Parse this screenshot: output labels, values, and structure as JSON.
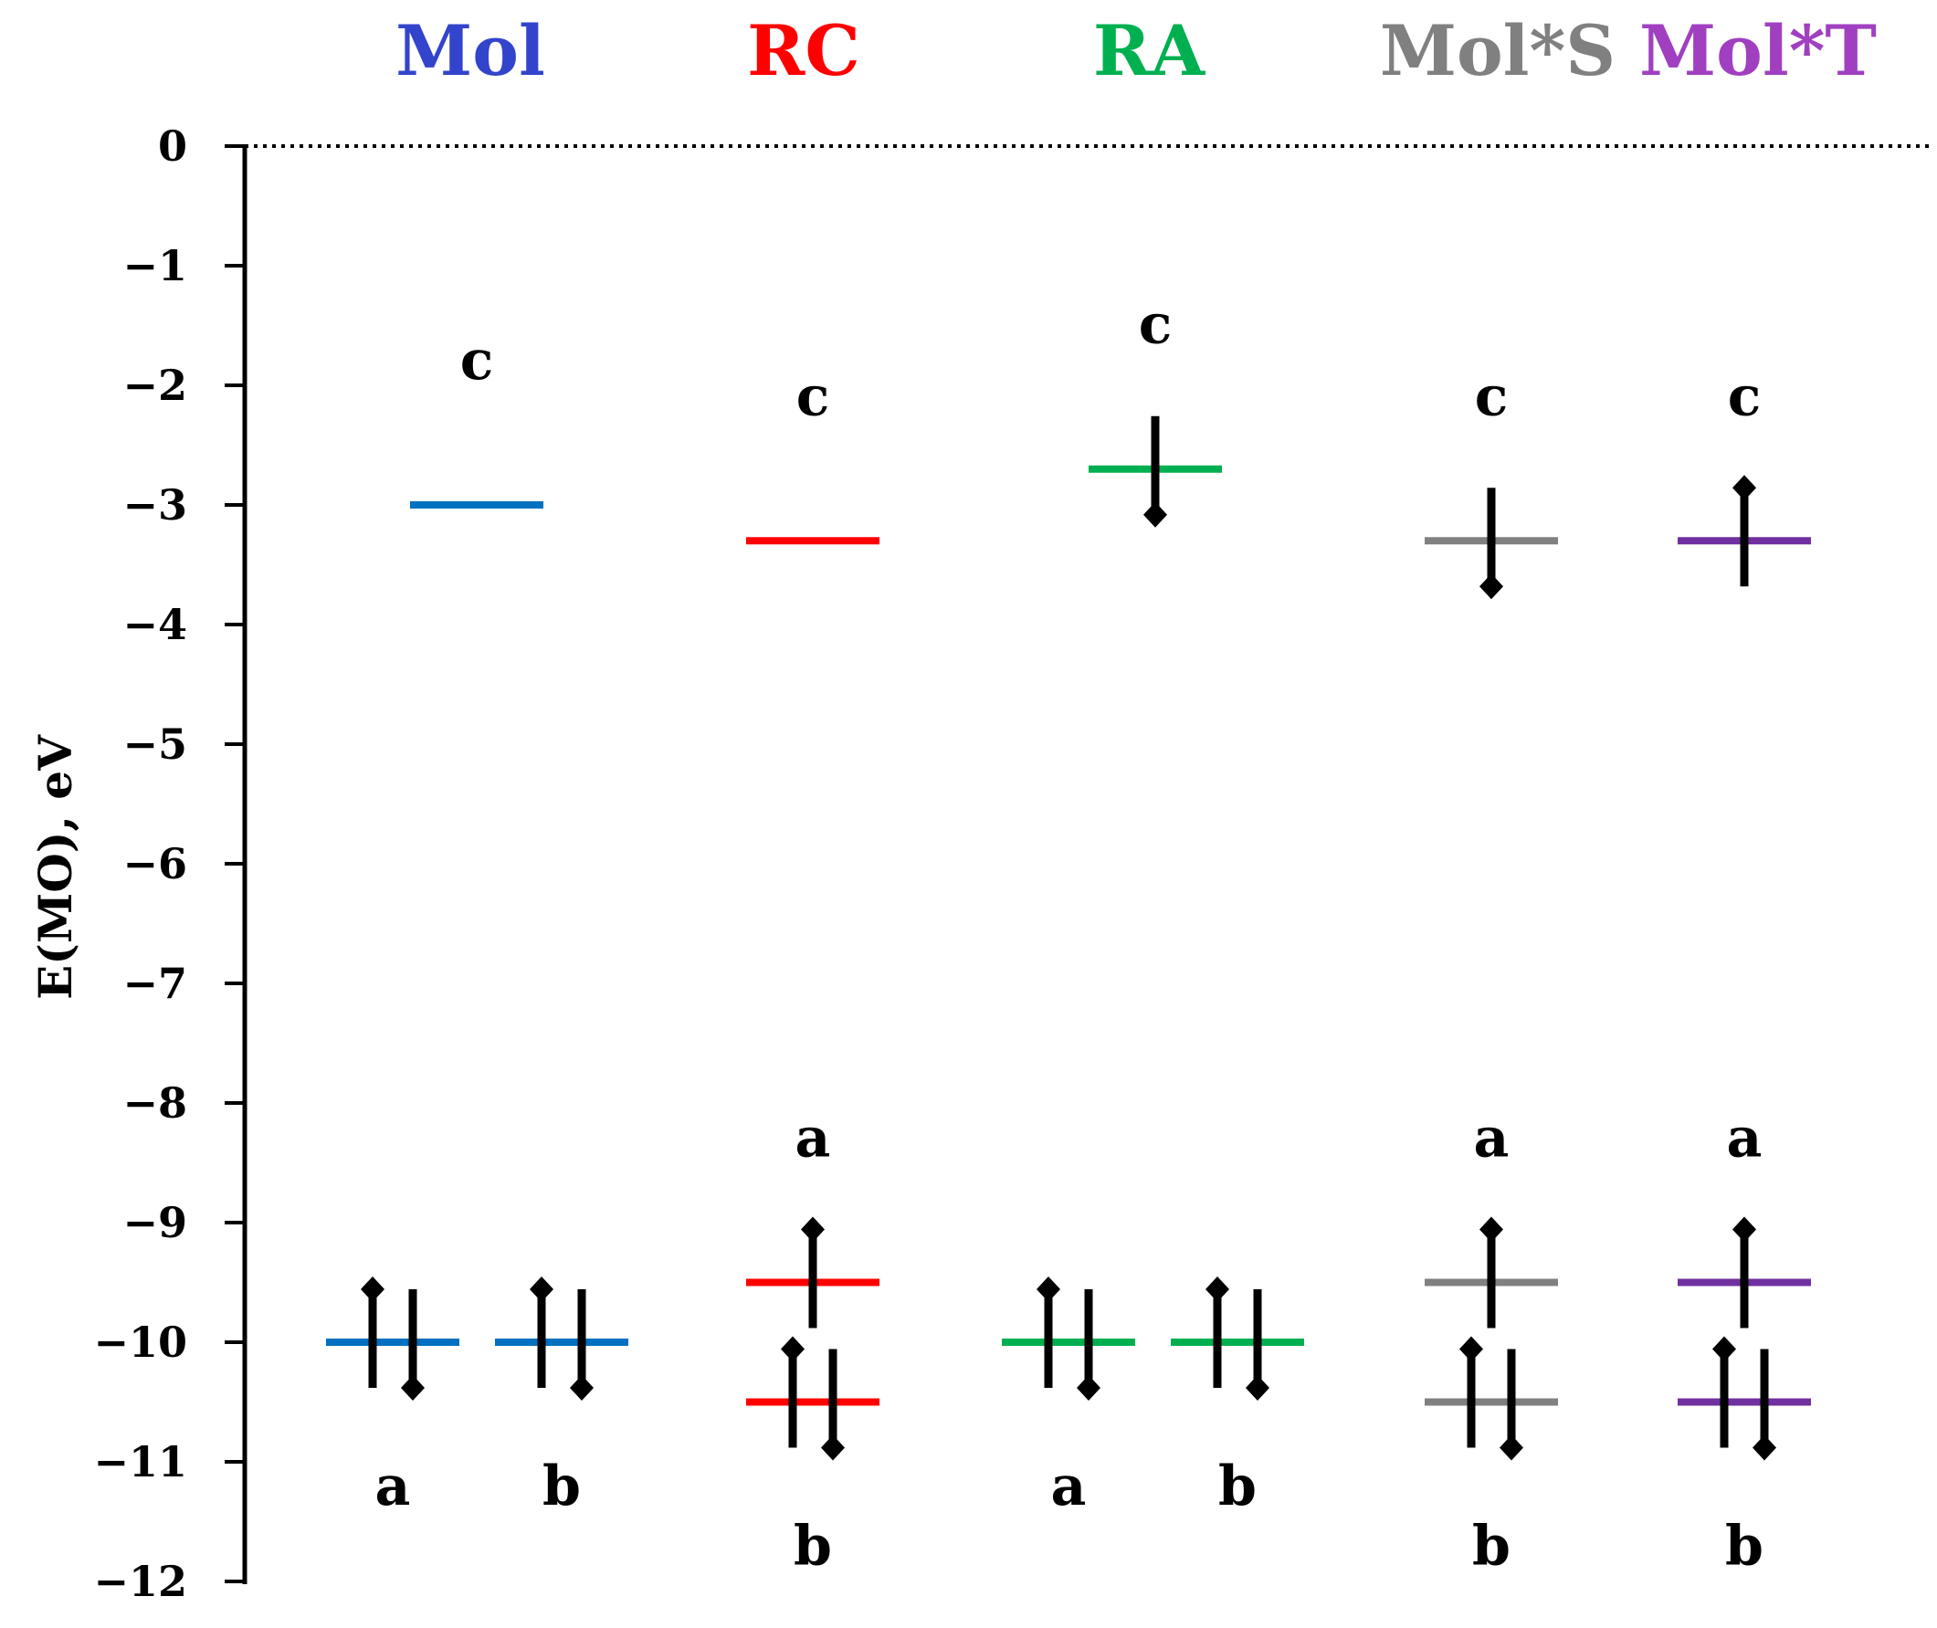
{
  "chart_data": {
    "type": "energy-level-diagram",
    "ylabel": "E(MO), eV",
    "ylim": [
      -12,
      0
    ],
    "yticks": [
      0,
      -1,
      -2,
      -3,
      -4,
      -5,
      -6,
      -7,
      -8,
      -9,
      -10,
      -11,
      -12
    ],
    "ytick_labels": [
      "0",
      "−1",
      "−2",
      "−3",
      "−4",
      "−5",
      "−6",
      "−7",
      "−8",
      "−9",
      "−10",
      "−11",
      "−12"
    ],
    "zero_line": "dotted",
    "groups": [
      {
        "name": "Mol",
        "color": "#3344cc",
        "levels": [
          {
            "label": "c",
            "energy": -3.0,
            "color": "#0070c0",
            "electrons": []
          },
          {
            "label": "a",
            "energy": -10.0,
            "color": "#0070c0",
            "electrons": [
              "up",
              "down"
            ]
          },
          {
            "label": "b",
            "energy": -10.0,
            "color": "#0070c0",
            "electrons": [
              "up",
              "down"
            ]
          }
        ]
      },
      {
        "name": "RC",
        "color": "#ff0000",
        "levels": [
          {
            "label": "c",
            "energy": -3.3,
            "color": "#ff0000",
            "electrons": []
          },
          {
            "label": "a",
            "energy": -9.5,
            "color": "#ff0000",
            "electrons": [
              "up"
            ]
          },
          {
            "label": "b",
            "energy": -10.5,
            "color": "#ff0000",
            "electrons": [
              "up",
              "down"
            ]
          }
        ]
      },
      {
        "name": "RA",
        "color": "#00b050",
        "levels": [
          {
            "label": "c",
            "energy": -2.7,
            "color": "#00b050",
            "electrons": [
              "down"
            ]
          },
          {
            "label": "a",
            "energy": -10.0,
            "color": "#00b050",
            "electrons": [
              "up",
              "down"
            ]
          },
          {
            "label": "b",
            "energy": -10.0,
            "color": "#00b050",
            "electrons": [
              "up",
              "down"
            ]
          }
        ]
      },
      {
        "name": "Mol*S",
        "color": "#808080",
        "levels": [
          {
            "label": "c",
            "energy": -3.3,
            "color": "#808080",
            "electrons": [
              "down"
            ]
          },
          {
            "label": "a",
            "energy": -9.5,
            "color": "#808080",
            "electrons": [
              "up"
            ]
          },
          {
            "label": "b",
            "energy": -10.5,
            "color": "#808080",
            "electrons": [
              "up",
              "down"
            ]
          }
        ]
      },
      {
        "name": "Mol*T",
        "color": "#a040c0",
        "levels": [
          {
            "label": "c",
            "energy": -3.3,
            "color": "#7030a0",
            "electrons": [
              "up"
            ]
          },
          {
            "label": "a",
            "energy": -9.5,
            "color": "#7030a0",
            "electrons": [
              "up"
            ]
          },
          {
            "label": "b",
            "energy": -10.5,
            "color": "#7030a0",
            "electrons": [
              "up",
              "down"
            ]
          }
        ]
      }
    ]
  }
}
